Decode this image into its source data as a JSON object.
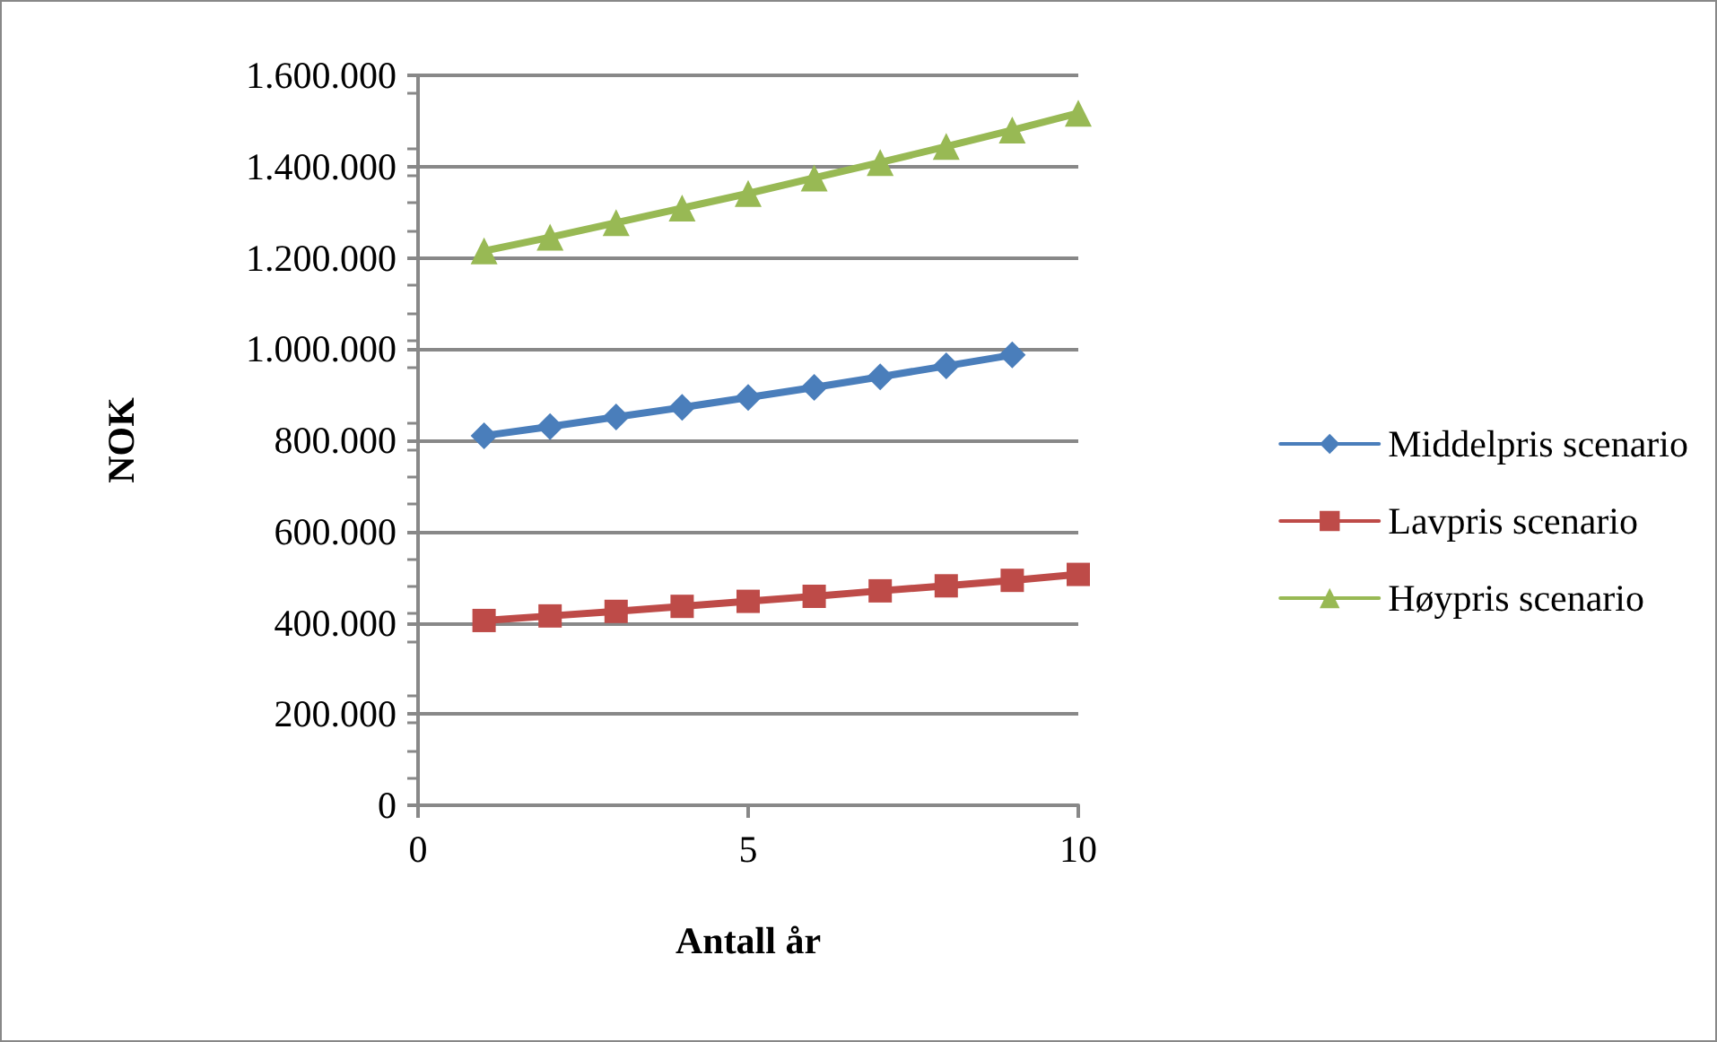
{
  "chart_data": {
    "type": "line",
    "xlabel": "Antall år",
    "ylabel": "NOK",
    "series": [
      {
        "name": "Middelpris scenario",
        "color": "#4a7ebb",
        "marker": "diamond",
        "x": [
          1,
          2,
          3,
          4,
          5,
          6,
          7,
          8,
          9
        ],
        "values": [
          810000,
          830000,
          851000,
          872000,
          894000,
          916000,
          939000,
          963000,
          987000
        ]
      },
      {
        "name": "Lavpris scenario",
        "color": "#be4b48",
        "marker": "square",
        "x": [
          1,
          2,
          3,
          4,
          5,
          6,
          7,
          8,
          9,
          10
        ],
        "values": [
          405000,
          415000,
          425000,
          436000,
          447000,
          458000,
          470000,
          481000,
          493000,
          506000
        ]
      },
      {
        "name": "Høypris scenario",
        "color": "#98b954",
        "marker": "triangle",
        "x": [
          1,
          2,
          3,
          4,
          5,
          6,
          7,
          8,
          9,
          10
        ],
        "values": [
          1215000,
          1245000,
          1277000,
          1309000,
          1341000,
          1375000,
          1409000,
          1444000,
          1480000,
          1517000
        ]
      }
    ],
    "xlim": [
      0,
      10
    ],
    "xticks": [
      0,
      5,
      10
    ],
    "ylim": [
      0,
      1600000
    ],
    "yticks": [
      0,
      {
        "value": 200000,
        "label": "200.000"
      },
      {
        "value": 400000,
        "label": "400.000"
      },
      {
        "value": 600000,
        "label": "600.000"
      },
      {
        "value": 800000,
        "label": "800.000"
      },
      {
        "value": 1000000,
        "label": "1.000.000"
      },
      {
        "value": 1200000,
        "label": "1.200.000"
      },
      {
        "value": 1400000,
        "label": "1.400.000"
      },
      {
        "value": 1600000,
        "label": "1.600.000"
      }
    ],
    "grid": "y",
    "legend": "right",
    "line_style": "solid"
  }
}
